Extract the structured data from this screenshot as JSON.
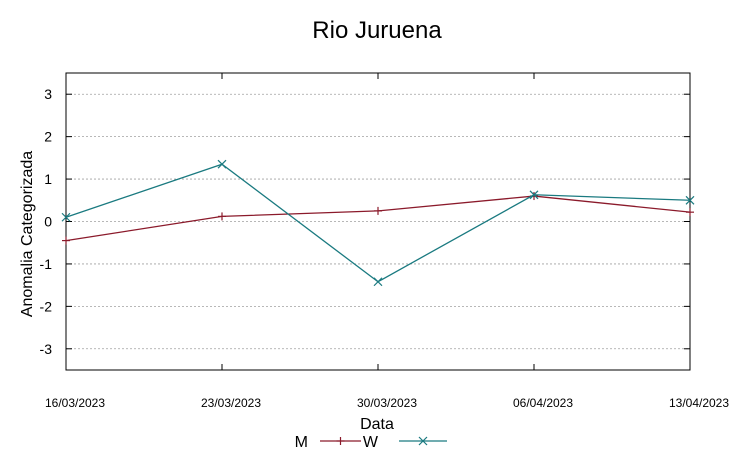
{
  "chart_data": {
    "type": "line",
    "title": "Rio Juruena",
    "xlabel": "Data",
    "ylabel": "Anomalia Categorizada",
    "categories": [
      "16/03/2023",
      "23/03/2023",
      "30/03/2023",
      "06/04/2023",
      "13/04/2023"
    ],
    "ylim": [
      -3.5,
      3.5
    ],
    "yticks": [
      -3,
      -2,
      -1,
      0,
      1,
      2,
      3
    ],
    "ytick_labels": [
      "-3",
      "-2",
      "-1",
      "0",
      "1",
      "2",
      "3"
    ],
    "grid": true,
    "legend_position": "bottom-center",
    "series": [
      {
        "name": "M",
        "color": "#8b1a2b",
        "marker": "plus",
        "values": [
          -0.45,
          0.12,
          0.25,
          0.6,
          0.22
        ]
      },
      {
        "name": "W",
        "color": "#1a7a80",
        "marker": "cross",
        "values": [
          0.1,
          1.35,
          -1.42,
          0.63,
          0.5
        ]
      }
    ]
  }
}
